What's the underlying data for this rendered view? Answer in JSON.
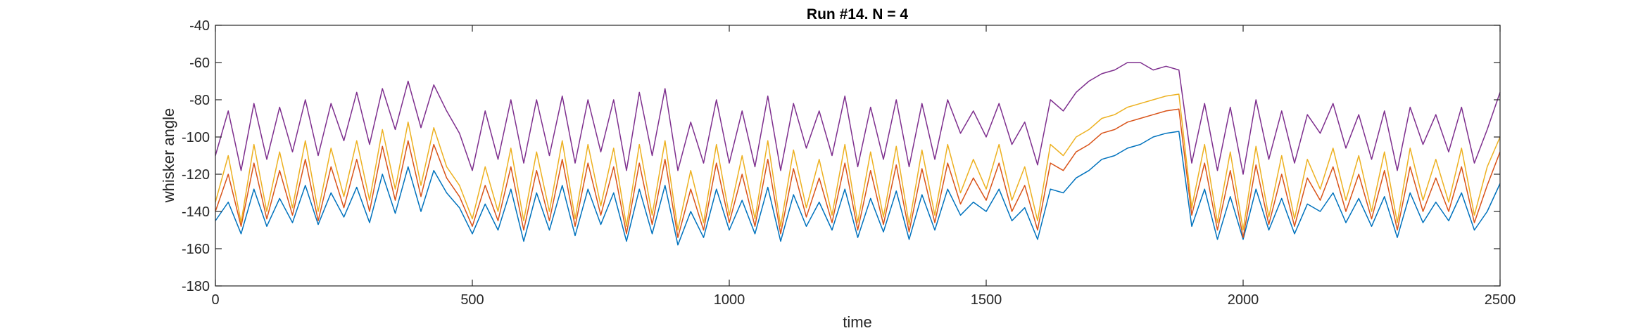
{
  "chart_data": {
    "type": "line",
    "title": "Run #14. N = 4",
    "xlabel": "time",
    "ylabel": "whisker angle",
    "xlim": [
      0,
      2500
    ],
    "ylim": [
      -180,
      -40
    ],
    "xticks": [
      0,
      500,
      1000,
      1500,
      2000,
      2500
    ],
    "yticks": [
      -180,
      -160,
      -140,
      -120,
      -100,
      -80,
      -60,
      -40
    ],
    "grid": false,
    "series": [
      {
        "color": "#0072BD",
        "x": [
          0,
          25,
          50,
          75,
          100,
          125,
          150,
          175,
          200,
          225,
          250,
          275,
          300,
          325,
          350,
          375,
          400,
          425,
          450,
          475,
          500,
          525,
          550,
          575,
          600,
          625,
          650,
          675,
          700,
          725,
          750,
          775,
          800,
          825,
          850,
          875,
          900,
          925,
          950,
          975,
          1000,
          1025,
          1050,
          1075,
          1100,
          1125,
          1150,
          1175,
          1200,
          1225,
          1250,
          1275,
          1300,
          1325,
          1350,
          1375,
          1400,
          1425,
          1450,
          1475,
          1500,
          1525,
          1550,
          1575,
          1600,
          1625,
          1650,
          1675,
          1700,
          1725,
          1750,
          1775,
          1800,
          1825,
          1850,
          1875,
          1900,
          1925,
          1950,
          1975,
          2000,
          2025,
          2050,
          2075,
          2100,
          2125,
          2150,
          2175,
          2200,
          2225,
          2250,
          2275,
          2300,
          2325,
          2350,
          2375,
          2400,
          2425,
          2450,
          2475,
          2500
        ],
        "y": [
          -145,
          -135,
          -152,
          -128,
          -148,
          -133,
          -146,
          -126,
          -147,
          -130,
          -143,
          -127,
          -146,
          -120,
          -141,
          -116,
          -140,
          -118,
          -130,
          -138,
          -152,
          -136,
          -150,
          -128,
          -156,
          -130,
          -150,
          -126,
          -153,
          -128,
          -147,
          -130,
          -156,
          -128,
          -152,
          -126,
          -158,
          -140,
          -154,
          -128,
          -150,
          -134,
          -152,
          -127,
          -156,
          -131,
          -148,
          -135,
          -150,
          -128,
          -154,
          -133,
          -151,
          -129,
          -155,
          -131,
          -150,
          -128,
          -142,
          -135,
          -140,
          -128,
          -145,
          -138,
          -155,
          -128,
          -130,
          -122,
          -118,
          -112,
          -110,
          -106,
          -104,
          -100,
          -98,
          -97,
          -148,
          -128,
          -155,
          -132,
          -155,
          -128,
          -150,
          -133,
          -152,
          -136,
          -140,
          -130,
          -146,
          -133,
          -148,
          -132,
          -154,
          -130,
          -146,
          -135,
          -145,
          -130,
          -150,
          -140,
          -125
        ]
      },
      {
        "color": "#D95319",
        "x": [
          0,
          25,
          50,
          75,
          100,
          125,
          150,
          175,
          200,
          225,
          250,
          275,
          300,
          325,
          350,
          375,
          400,
          425,
          450,
          475,
          500,
          525,
          550,
          575,
          600,
          625,
          650,
          675,
          700,
          725,
          750,
          775,
          800,
          825,
          850,
          875,
          900,
          925,
          950,
          975,
          1000,
          1025,
          1050,
          1075,
          1100,
          1125,
          1150,
          1175,
          1200,
          1225,
          1250,
          1275,
          1300,
          1325,
          1350,
          1375,
          1400,
          1425,
          1450,
          1475,
          1500,
          1525,
          1550,
          1575,
          1600,
          1625,
          1650,
          1675,
          1700,
          1725,
          1750,
          1775,
          1800,
          1825,
          1850,
          1875,
          1900,
          1925,
          1950,
          1975,
          2000,
          2025,
          2050,
          2075,
          2100,
          2125,
          2150,
          2175,
          2200,
          2225,
          2250,
          2275,
          2300,
          2325,
          2350,
          2375,
          2400,
          2425,
          2450,
          2475,
          2500
        ],
        "y": [
          -140,
          -120,
          -148,
          -114,
          -144,
          -118,
          -142,
          -112,
          -145,
          -116,
          -138,
          -112,
          -140,
          -105,
          -134,
          -102,
          -132,
          -104,
          -122,
          -132,
          -148,
          -126,
          -145,
          -116,
          -150,
          -118,
          -145,
          -112,
          -148,
          -114,
          -142,
          -116,
          -152,
          -114,
          -147,
          -112,
          -154,
          -128,
          -150,
          -114,
          -146,
          -120,
          -148,
          -112,
          -152,
          -117,
          -143,
          -122,
          -146,
          -114,
          -150,
          -118,
          -147,
          -115,
          -151,
          -117,
          -146,
          -114,
          -136,
          -122,
          -134,
          -114,
          -140,
          -126,
          -150,
          -114,
          -118,
          -108,
          -104,
          -98,
          -96,
          -92,
          -90,
          -88,
          -86,
          -85,
          -142,
          -114,
          -150,
          -118,
          -154,
          -115,
          -147,
          -120,
          -148,
          -122,
          -134,
          -116,
          -140,
          -120,
          -144,
          -118,
          -150,
          -116,
          -140,
          -122,
          -140,
          -116,
          -146,
          -126,
          -108
        ]
      },
      {
        "color": "#EDB120",
        "x": [
          0,
          25,
          50,
          75,
          100,
          125,
          150,
          175,
          200,
          225,
          250,
          275,
          300,
          325,
          350,
          375,
          400,
          425,
          450,
          475,
          500,
          525,
          550,
          575,
          600,
          625,
          650,
          675,
          700,
          725,
          750,
          775,
          800,
          825,
          850,
          875,
          900,
          925,
          950,
          975,
          1000,
          1025,
          1050,
          1075,
          1100,
          1125,
          1150,
          1175,
          1200,
          1225,
          1250,
          1275,
          1300,
          1325,
          1350,
          1375,
          1400,
          1425,
          1450,
          1475,
          1500,
          1525,
          1550,
          1575,
          1600,
          1625,
          1650,
          1675,
          1700,
          1725,
          1750,
          1775,
          1800,
          1825,
          1850,
          1875,
          1900,
          1925,
          1950,
          1975,
          2000,
          2025,
          2050,
          2075,
          2100,
          2125,
          2150,
          2175,
          2200,
          2225,
          2250,
          2275,
          2300,
          2325,
          2350,
          2375,
          2400,
          2425,
          2450,
          2475,
          2500
        ],
        "y": [
          -135,
          -110,
          -146,
          -104,
          -140,
          -108,
          -138,
          -102,
          -140,
          -106,
          -132,
          -102,
          -134,
          -96,
          -128,
          -92,
          -126,
          -95,
          -116,
          -126,
          -144,
          -116,
          -140,
          -106,
          -145,
          -108,
          -140,
          -102,
          -144,
          -104,
          -137,
          -106,
          -148,
          -104,
          -142,
          -102,
          -150,
          -118,
          -146,
          -104,
          -142,
          -110,
          -144,
          -102,
          -148,
          -107,
          -138,
          -112,
          -142,
          -104,
          -146,
          -108,
          -143,
          -105,
          -147,
          -107,
          -142,
          -104,
          -130,
          -112,
          -128,
          -104,
          -134,
          -116,
          -145,
          -104,
          -110,
          -100,
          -96,
          -90,
          -88,
          -84,
          -82,
          -80,
          -78,
          -77,
          -138,
          -104,
          -146,
          -108,
          -150,
          -105,
          -143,
          -110,
          -144,
          -112,
          -128,
          -106,
          -134,
          -110,
          -140,
          -108,
          -146,
          -106,
          -134,
          -112,
          -135,
          -106,
          -142,
          -116,
          -100
        ]
      },
      {
        "color": "#7E2F8E",
        "x": [
          0,
          25,
          50,
          75,
          100,
          125,
          150,
          175,
          200,
          225,
          250,
          275,
          300,
          325,
          350,
          375,
          400,
          425,
          450,
          475,
          500,
          525,
          550,
          575,
          600,
          625,
          650,
          675,
          700,
          725,
          750,
          775,
          800,
          825,
          850,
          875,
          900,
          925,
          950,
          975,
          1000,
          1025,
          1050,
          1075,
          1100,
          1125,
          1150,
          1175,
          1200,
          1225,
          1250,
          1275,
          1300,
          1325,
          1350,
          1375,
          1400,
          1425,
          1450,
          1475,
          1500,
          1525,
          1550,
          1575,
          1600,
          1625,
          1650,
          1675,
          1700,
          1725,
          1750,
          1775,
          1800,
          1825,
          1850,
          1875,
          1900,
          1925,
          1950,
          1975,
          2000,
          2025,
          2050,
          2075,
          2100,
          2125,
          2150,
          2175,
          2200,
          2225,
          2250,
          2275,
          2300,
          2325,
          2350,
          2375,
          2400,
          2425,
          2450,
          2475,
          2500
        ],
        "y": [
          -110,
          -86,
          -118,
          -82,
          -112,
          -84,
          -108,
          -80,
          -110,
          -82,
          -102,
          -76,
          -104,
          -74,
          -96,
          -70,
          -95,
          -72,
          -86,
          -98,
          -118,
          -86,
          -112,
          -80,
          -114,
          -80,
          -110,
          -78,
          -114,
          -80,
          -108,
          -80,
          -118,
          -76,
          -110,
          -74,
          -118,
          -92,
          -114,
          -80,
          -114,
          -86,
          -116,
          -78,
          -118,
          -82,
          -106,
          -86,
          -110,
          -78,
          -116,
          -84,
          -112,
          -80,
          -116,
          -82,
          -112,
          -80,
          -98,
          -86,
          -100,
          -82,
          -104,
          -92,
          -115,
          -80,
          -86,
          -76,
          -70,
          -66,
          -64,
          -60,
          -60,
          -64,
          -62,
          -64,
          -114,
          -82,
          -118,
          -84,
          -120,
          -80,
          -112,
          -86,
          -114,
          -88,
          -98,
          -82,
          -106,
          -88,
          -112,
          -86,
          -118,
          -84,
          -104,
          -88,
          -108,
          -84,
          -114,
          -96,
          -76
        ]
      }
    ]
  }
}
